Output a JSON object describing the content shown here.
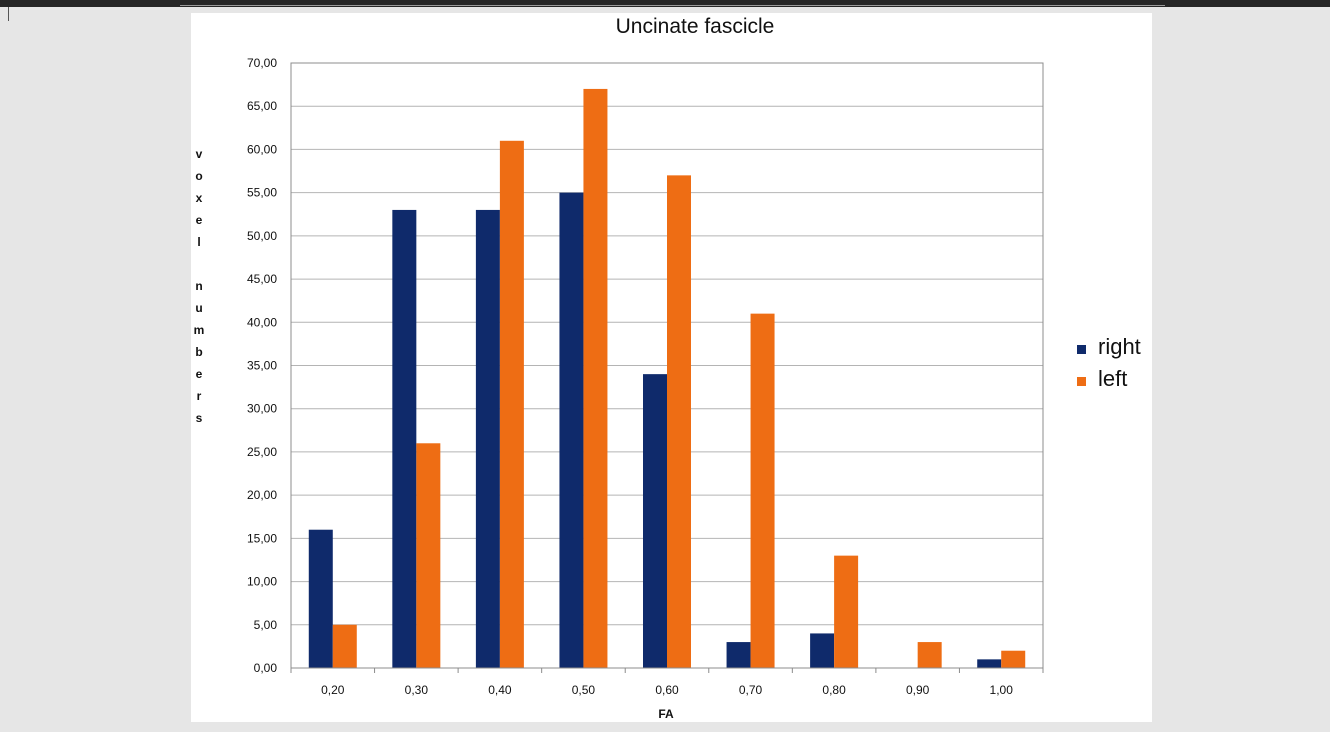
{
  "chart_data": {
    "type": "bar",
    "title": "Uncinate fascicle",
    "xlabel": "FA",
    "ylabel": "voxel numbers",
    "categories": [
      "0,20",
      "0,30",
      "0,40",
      "0,50",
      "0,60",
      "0,70",
      "0,80",
      "0,90",
      "1,00"
    ],
    "series": [
      {
        "name": "right",
        "color": "#0f2a6b",
        "values": [
          16,
          53,
          53,
          55,
          34,
          3,
          4,
          0,
          1
        ]
      },
      {
        "name": "left",
        "color": "#ee6d14",
        "values": [
          5,
          26,
          61,
          67,
          57,
          41,
          13,
          3,
          2
        ]
      }
    ],
    "ylim": [
      0,
      70
    ],
    "y_ticks": [
      "0,00",
      "5,00",
      "10,00",
      "15,00",
      "20,00",
      "25,00",
      "30,00",
      "35,00",
      "40,00",
      "45,00",
      "50,00",
      "55,00",
      "60,00",
      "65,00",
      "70,00"
    ],
    "grid": true,
    "legend_position": "right"
  }
}
